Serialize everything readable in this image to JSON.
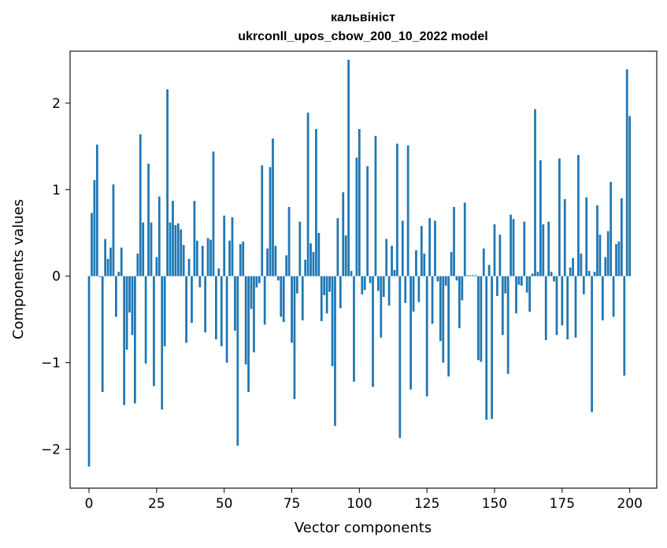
{
  "chart_data": {
    "type": "bar",
    "title": "кальвініст",
    "subtitle": "ukrconll_upos_cbow_200_10_2022 model",
    "xlabel": "Vector components",
    "ylabel": "Components values",
    "xlim": [
      -7,
      210
    ],
    "ylim": [
      -2.45,
      2.6
    ],
    "xticks": [
      0,
      25,
      50,
      75,
      100,
      125,
      150,
      175,
      200
    ],
    "xtick_labels": [
      "0",
      "25",
      "50",
      "75",
      "100",
      "125",
      "150",
      "175",
      "200"
    ],
    "yticks": [
      -2,
      -1,
      0,
      1,
      2
    ],
    "ytick_labels": [
      "−2",
      "−1",
      "0",
      "1",
      "2"
    ],
    "bar_color": "#1f77b4",
    "values": [
      -2.2,
      0.73,
      1.11,
      1.52,
      -0.01,
      -1.34,
      0.43,
      0.2,
      0.33,
      1.06,
      -0.47,
      0.05,
      0.33,
      -1.49,
      -0.85,
      -0.42,
      -0.68,
      -1.47,
      0.26,
      1.64,
      0.62,
      -1.01,
      1.3,
      0.62,
      -1.27,
      0.22,
      0.92,
      -1.54,
      -0.81,
      2.16,
      0.62,
      0.87,
      0.59,
      0.61,
      0.54,
      0.36,
      -0.77,
      0.2,
      -0.54,
      0.87,
      0.41,
      -0.13,
      0.35,
      -0.65,
      0.44,
      0.42,
      1.44,
      -0.73,
      0.09,
      -0.81,
      0.7,
      -1.0,
      0.41,
      0.68,
      -0.63,
      -1.96,
      0.37,
      0.4,
      -1.02,
      -1.34,
      -0.38,
      -0.88,
      -0.13,
      -0.08,
      1.28,
      -0.56,
      0.32,
      1.26,
      1.59,
      0.35,
      -0.05,
      -0.47,
      -0.53,
      0.24,
      0.8,
      -0.77,
      -1.42,
      -0.2,
      0.63,
      -0.51,
      0.19,
      1.89,
      0.38,
      0.28,
      1.7,
      0.5,
      -0.52,
      -0.22,
      -0.43,
      -0.18,
      -1.04,
      -1.73,
      0.67,
      -0.37,
      0.97,
      0.47,
      2.5,
      0.06,
      -1.22,
      1.37,
      1.7,
      -0.21,
      -0.16,
      1.27,
      -0.08,
      -1.28,
      1.62,
      -0.17,
      -0.71,
      -0.24,
      0.43,
      -0.34,
      0.35,
      0.07,
      1.53,
      -1.87,
      0.64,
      -0.31,
      1.51,
      -1.31,
      -0.41,
      0.3,
      -0.3,
      0.58,
      0.26,
      -1.39,
      0.67,
      -0.55,
      0.64,
      -0.06,
      -0.75,
      -1.0,
      -0.11,
      -1.16,
      0.28,
      0.8,
      -0.05,
      -0.6,
      -0.28,
      0.85,
      0.01,
      0.01,
      0.01,
      0.01,
      -0.97,
      -0.99,
      0.32,
      -1.66,
      0.13,
      -1.65,
      0.6,
      -0.23,
      0.48,
      -0.68,
      -0.2,
      -1.13,
      0.71,
      0.66,
      -0.43,
      -0.1,
      -0.11,
      0.63,
      -0.19,
      -0.41,
      0.03,
      1.93,
      0.05,
      1.34,
      0.6,
      -0.74,
      0.63,
      0.05,
      -0.06,
      -0.68,
      1.36,
      -0.57,
      0.89,
      -0.73,
      0.1,
      0.21,
      -0.71,
      1.4,
      0.26,
      -0.21,
      0.91,
      0.06,
      -1.57,
      0.05,
      0.82,
      0.48,
      -0.51,
      0.22,
      0.52,
      1.09,
      -0.47,
      0.37,
      0.4,
      0.9,
      -1.15,
      2.39,
      1.85
    ]
  }
}
